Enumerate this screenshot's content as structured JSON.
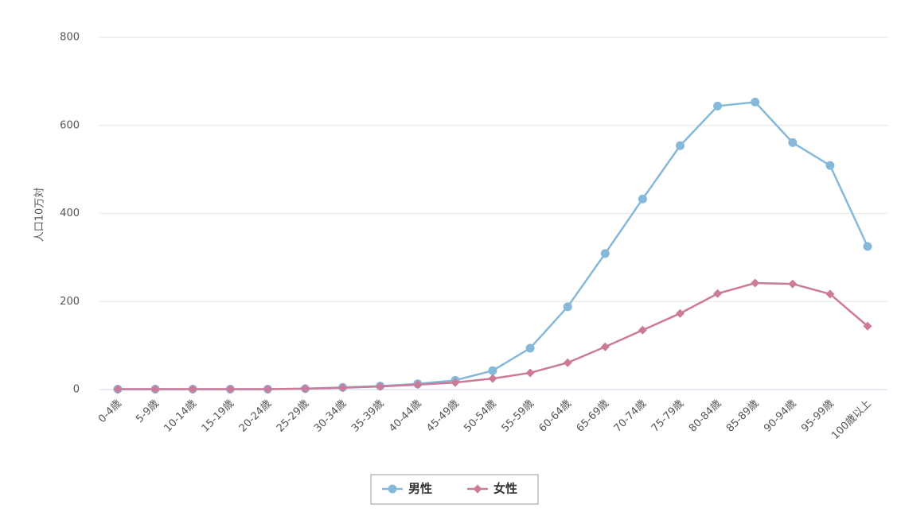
{
  "chart_data": {
    "type": "line",
    "y_label": "人口10万対",
    "categories": [
      "0-4歳",
      "5-9歳",
      "10-14歳",
      "15-19歳",
      "20-24歳",
      "25-29歳",
      "30-34歳",
      "35-39歳",
      "40-44歳",
      "45-49歳",
      "50-54歳",
      "55-59歳",
      "60-64歳",
      "65-69歳",
      "70-74歳",
      "75-79歳",
      "80-84歳",
      "85-89歳",
      "90-94歳",
      "95-99歳",
      "100歳以上"
    ],
    "series": [
      {
        "name": "男性",
        "color": "#86b9d9",
        "marker": "circle",
        "values": [
          1,
          1,
          1,
          1,
          1,
          2,
          5,
          8,
          13,
          21,
          43,
          94,
          188,
          309,
          433,
          554,
          644,
          653,
          561,
          509,
          325
        ]
      },
      {
        "name": "女性",
        "color": "#cc7a98",
        "marker": "diamond",
        "values": [
          1,
          1,
          1,
          1,
          1,
          2,
          4,
          7,
          11,
          16,
          25,
          38,
          61,
          97,
          135,
          173,
          218,
          242,
          240,
          217,
          144
        ]
      }
    ],
    "ylim": [
      0,
      800
    ],
    "yticks": [
      0,
      200,
      400,
      600,
      800
    ],
    "grid": true,
    "legend": "bottom"
  }
}
